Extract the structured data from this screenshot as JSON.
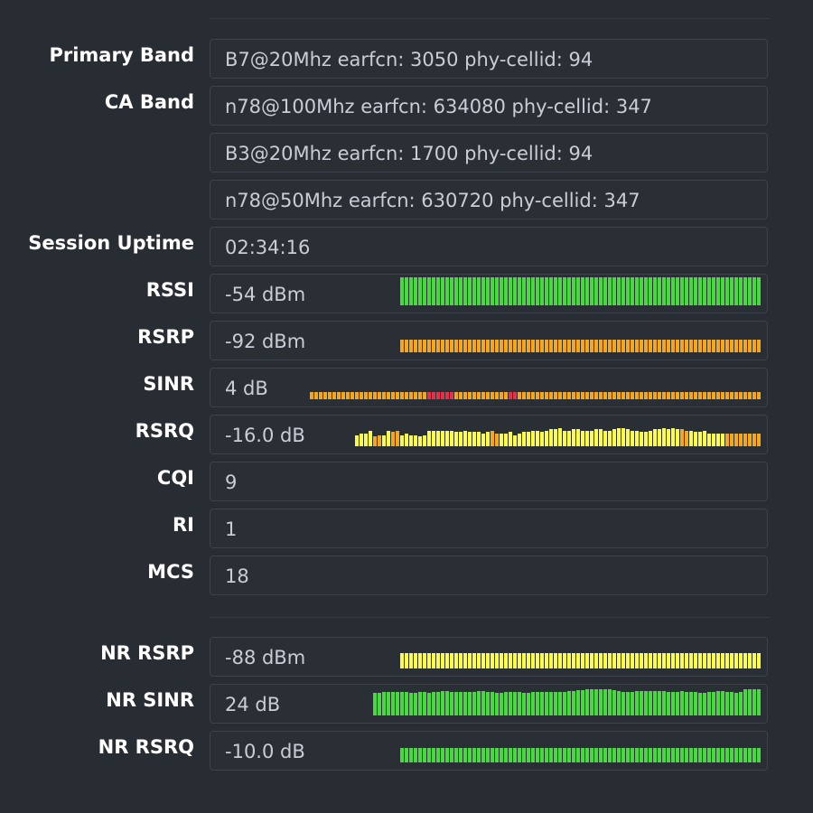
{
  "colors": {
    "green": "#4ad840",
    "orange": "#f3a81b",
    "yellow": "#fcfd4a",
    "red": "#e0344c"
  },
  "rows": [
    {
      "key": "primary-band",
      "label": "Primary Band",
      "value": "B7@20Mhz earfcn: 3050 phy-cellid: 94"
    },
    {
      "key": "ca-band-1",
      "label": "CA Band",
      "value": "n78@100Mhz earfcn: 634080 phy-cellid: 347"
    },
    {
      "key": "ca-band-2",
      "label": "",
      "value": "B3@20Mhz earfcn: 1700 phy-cellid: 94"
    },
    {
      "key": "ca-band-3",
      "label": "",
      "value": "n78@50Mhz earfcn: 630720 phy-cellid: 347"
    },
    {
      "key": "session-uptime",
      "label": "Session Uptime",
      "value": "02:34:16"
    },
    {
      "key": "rssi",
      "label": "RSSI",
      "value": "-54 dBm",
      "history": {
        "colors": "g*80",
        "levels": [
          100
        ]
      }
    },
    {
      "key": "rsrp",
      "label": "RSRP",
      "value": "-92 dBm",
      "history": {
        "colors": "o*80",
        "levels": [
          45
        ]
      }
    },
    {
      "key": "sinr",
      "label": "SINR",
      "value": "4 dB",
      "history": {
        "colors": "o*26,r*6,o*12,r*2,o*54",
        "levels": [
          25
        ]
      }
    },
    {
      "key": "rsrq",
      "label": "RSRQ",
      "value": "-16.0 dB",
      "history": {
        "colors": "y*4,o*2,y*2,o*2,y*20,o*2,y*40,o*2,y*8,o*8",
        "levels": [
          40,
          45,
          45,
          55,
          35,
          40,
          40,
          55,
          50,
          55,
          40,
          45,
          40,
          40,
          35,
          40,
          55,
          55,
          55,
          55,
          55,
          55,
          50,
          50,
          55,
          50,
          50,
          50,
          45,
          50,
          55,
          45,
          45,
          45,
          50,
          40,
          45,
          50,
          50,
          55,
          55,
          50,
          55,
          60,
          60,
          65,
          55,
          55,
          60,
          60,
          55,
          55,
          55,
          60,
          60,
          55,
          55,
          60,
          65,
          65,
          60,
          55,
          55,
          50,
          50,
          55,
          60,
          60,
          65,
          60,
          65,
          60,
          60,
          55,
          55,
          50,
          50,
          55,
          45,
          45
        ]
      }
    },
    {
      "key": "cqi",
      "label": "CQI",
      "value": "9"
    },
    {
      "key": "ri",
      "label": "RI",
      "value": "1"
    },
    {
      "key": "mcs",
      "label": "MCS",
      "value": "18"
    },
    {
      "key": "nr-rsrp",
      "label": "NR RSRP",
      "value": "-88 dBm",
      "history": {
        "colors": "y*80",
        "levels": [
          55
        ]
      }
    },
    {
      "key": "nr-sinr",
      "label": "NR SINR",
      "value": "24 dB",
      "history": {
        "colors": "g*86",
        "levels": [
          80,
          82,
          85,
          85,
          85,
          85,
          85,
          85,
          82,
          82,
          85,
          85,
          80,
          85,
          85,
          88,
          88,
          85,
          85,
          85,
          85,
          85,
          85,
          88,
          88,
          85,
          85,
          80,
          80,
          85,
          85,
          85,
          85,
          80,
          80,
          85,
          85,
          85,
          85,
          85,
          85,
          85,
          85,
          88,
          88,
          90,
          90,
          92,
          95,
          95,
          95,
          92,
          92,
          90,
          88,
          85,
          85,
          85,
          88,
          88,
          88,
          88,
          88,
          88,
          88,
          85,
          85,
          85,
          88,
          85,
          85,
          85,
          80,
          80,
          85,
          85,
          88,
          88,
          85,
          85,
          80,
          85,
          95,
          95,
          95,
          95
        ]
      }
    },
    {
      "key": "nr-rsrq",
      "label": "NR RSRQ",
      "value": "-10.0 dB",
      "history": {
        "colors": "g*80",
        "levels": [
          50
        ]
      }
    }
  ]
}
